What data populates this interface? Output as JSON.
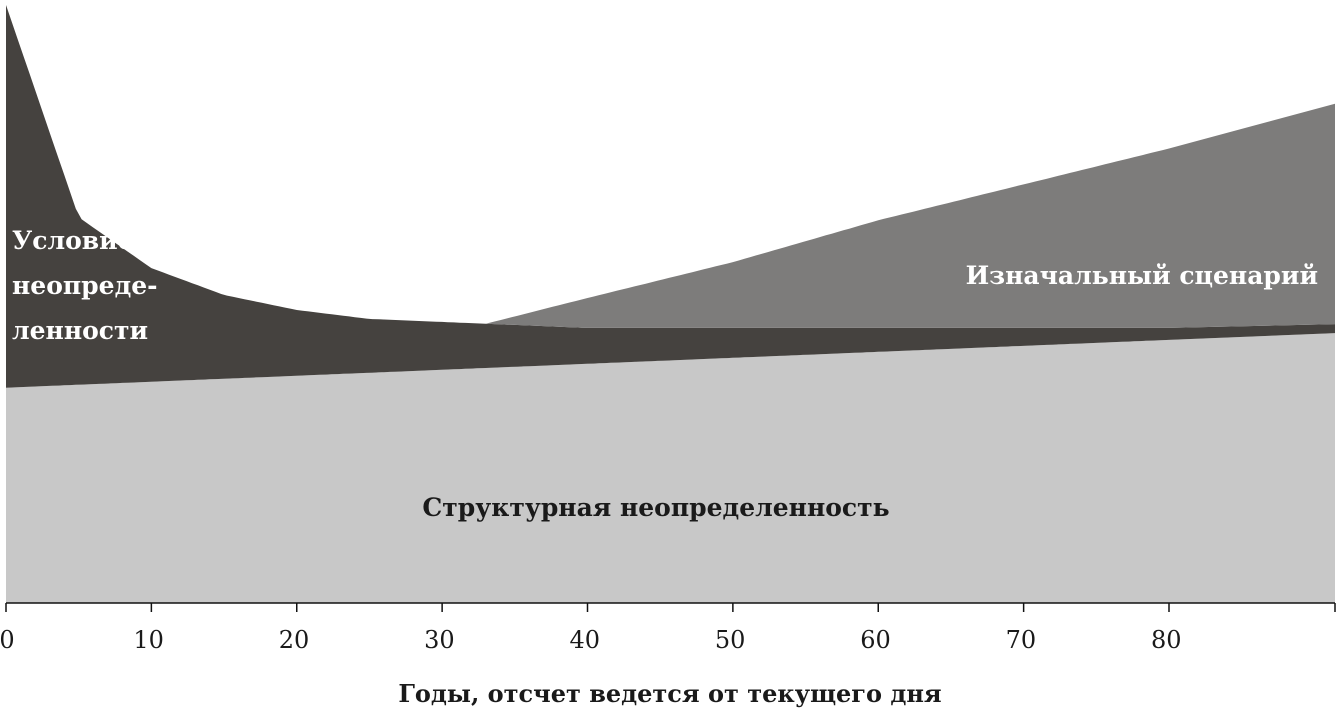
{
  "chart_data": {
    "type": "area",
    "title": "",
    "xlabel": "Годы, отсчет ведется от текущего дня",
    "ylabel": "",
    "xlim": [
      0,
      80
    ],
    "x_ticks": [
      0,
      10,
      20,
      30,
      40,
      50,
      60,
      70,
      80
    ],
    "grid": false,
    "stacked": true,
    "series": [
      {
        "name": "Структурная неопределенность",
        "color": "#c8c8c8",
        "x": [
          0,
          10,
          20,
          30,
          40,
          50,
          60,
          70,
          80
        ],
        "values": [
          0.36,
          0.37,
          0.38,
          0.39,
          0.4,
          0.41,
          0.42,
          0.43,
          0.44
        ]
      },
      {
        "name": "Условие неопределенности",
        "label_lines": [
          "Условие",
          "неопреде-",
          "ленности"
        ],
        "color": "#45423f",
        "x": [
          0,
          5,
          10,
          15,
          20,
          25,
          30,
          35,
          40,
          50,
          60,
          70,
          80
        ],
        "values": [
          0.64,
          0.28,
          0.19,
          0.14,
          0.11,
          0.09,
          0.08,
          0.07,
          0.06,
          0.05,
          0.04,
          0.03,
          0.02
        ]
      },
      {
        "name": "Изначальный сценарий",
        "color": "#7d7c7b",
        "x": [
          33,
          40,
          50,
          60,
          70,
          80
        ],
        "values": [
          0,
          0.05,
          0.11,
          0.18,
          0.24,
          0.3
        ]
      }
    ]
  }
}
